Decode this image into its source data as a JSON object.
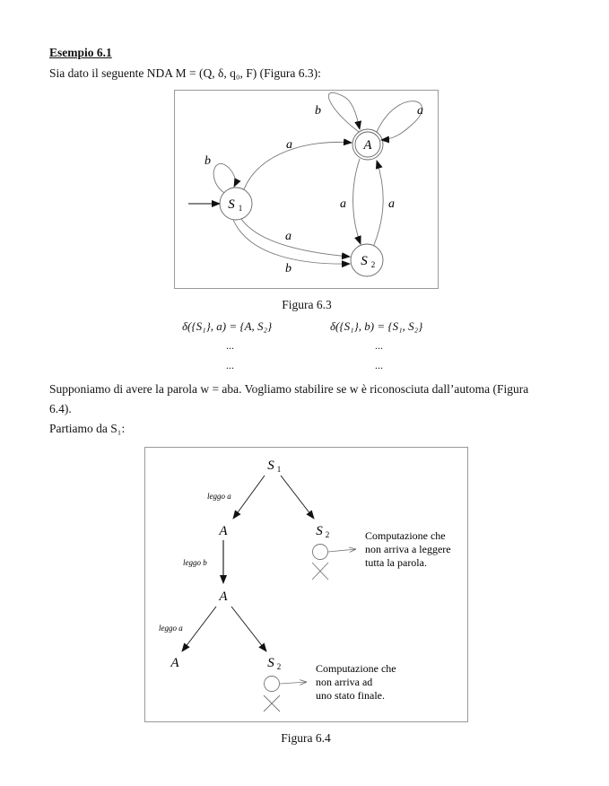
{
  "section": {
    "heading": "Esempio 6.1",
    "intro": "Sia dato il seguente NDA M = (Q, δ, q₀, F) (Figura 6.3):"
  },
  "figure63": {
    "caption": "Figura 6.3",
    "states": {
      "S1": "S",
      "S1_sub": "1",
      "S2": "S",
      "S2_sub": "2",
      "A": "A"
    },
    "labels": {
      "loop_A_left": "b",
      "loop_A_right": "a",
      "loop_S1": "b",
      "S1_to_A": "a",
      "S1_to_S2_top": "a",
      "S1_to_S2_bottom": "b",
      "A_to_S2": "a",
      "S2_to_A": "a"
    }
  },
  "transitions": {
    "left": "δ({S₁}, a) = {A, S₂}",
    "right": "δ({S₁}, b) = {S₁, S₂}",
    "ellipsis": "..."
  },
  "paragraph": {
    "line1": "Supponiamo di avere la parola w = aba. Vogliamo stabilire se w è riconosciuta dall’automa (Figura",
    "line2": "6.4).",
    "line3": "Partiamo da S₁:"
  },
  "figure64": {
    "caption": "Figura 6.4",
    "nodes": {
      "root": "S",
      "root_sub": "1",
      "A1": "A",
      "S2a": "S",
      "S2a_sub": "2",
      "A2": "A",
      "A3": "A",
      "S2b": "S",
      "S2b_sub": "2"
    },
    "edge_labels": {
      "read_a1": "leggo  a",
      "read_b": "leggo  b",
      "read_a2": "leggo  a"
    },
    "note1": [
      "Computazione che",
      "non arriva a leggere",
      "tutta la parola."
    ],
    "note2": [
      "Computazione che",
      "non arriva ad",
      "uno stato finale."
    ]
  }
}
